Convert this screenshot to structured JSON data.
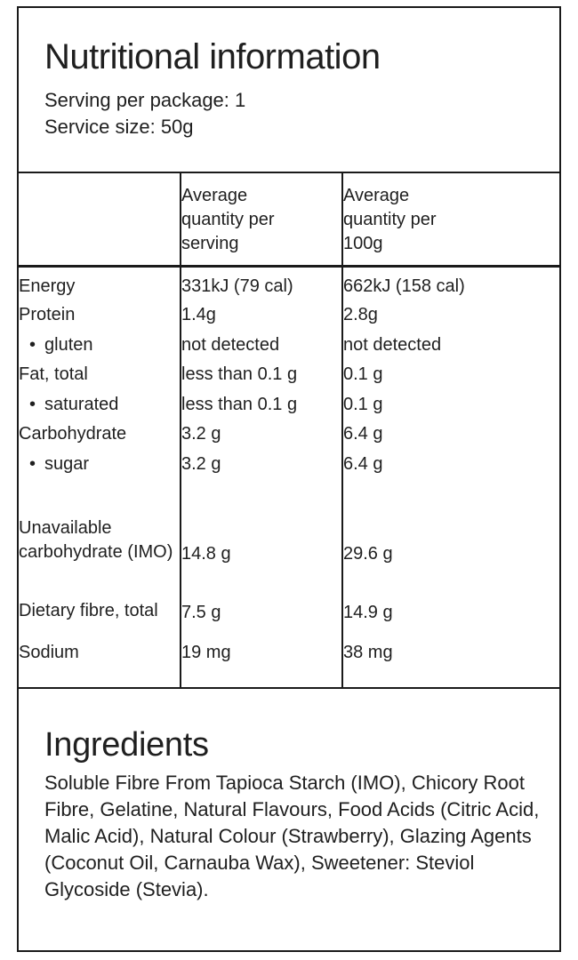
{
  "panel_title": "Nutritional information",
  "serving_info": {
    "per_package": "Serving per package: 1",
    "size": "Service size: 50g"
  },
  "table": {
    "header": {
      "per_serving": "Average quantity per serving",
      "per_100g": "Average quantity per 100g"
    },
    "rows": [
      {
        "label": "Energy",
        "per_serving": "331kJ (79 cal)",
        "per_100g": "662kJ (158 cal)"
      },
      {
        "label": "Protein",
        "per_serving": "1.4g",
        "per_100g": "2.8g"
      },
      {
        "label": "gluten",
        "indent": true,
        "per_serving": "not detected",
        "per_100g": "not detected"
      },
      {
        "label": "Fat, total",
        "per_serving": "less than 0.1 g",
        "per_100g": "0.1 g"
      },
      {
        "label": "saturated",
        "indent": true,
        "per_serving": "less than 0.1 g",
        "per_100g": "0.1 g"
      },
      {
        "label": "Carbohydrate",
        "per_serving": "3.2 g",
        "per_100g": "6.4 g"
      },
      {
        "label": "sugar",
        "indent": true,
        "per_serving": "3.2 g",
        "per_100g": "6.4 g"
      },
      {
        "label": "Unavailable carbohydrate (IMO)",
        "per_serving": "14.8 g",
        "per_100g": "29.6 g"
      },
      {
        "label": "Dietary fibre, total",
        "per_serving": "7.5 g",
        "per_100g": "14.9 g"
      },
      {
        "label": "Sodium",
        "per_serving": "19 mg",
        "per_100g": "38 mg"
      }
    ]
  },
  "ingredients": {
    "title": "Ingredients",
    "text": "Soluble Fibre From Tapioca Starch (IMO), Chicory Root Fibre, Gelatine, Natural Flavours, Food Acids (Citric Acid, Malic Acid), Natural Colour (Strawberry), Glazing Agents (Coconut Oil, Carnauba Wax), Sweetener: Steviol Glycoside (Stevia)."
  },
  "colors": {
    "text": "#1f1f1f",
    "border": "#1a1a1a",
    "background": "#ffffff"
  }
}
